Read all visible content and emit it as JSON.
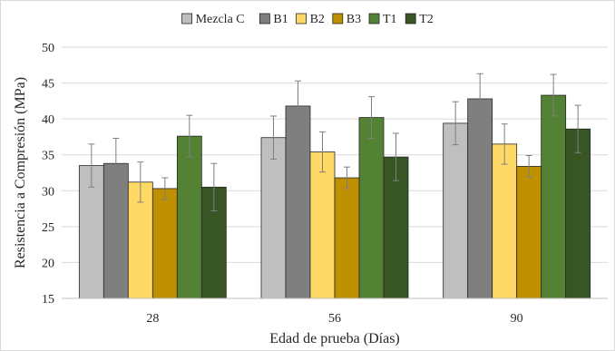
{
  "chart_data": {
    "type": "bar",
    "title": "",
    "xlabel": "Edad de prueba (Días)",
    "ylabel": "Resistencia a Compresión (MPa)",
    "ylim": [
      15,
      50
    ],
    "yticks": [
      15,
      20,
      25,
      30,
      35,
      40,
      45,
      50
    ],
    "grid": true,
    "legend_position": "top",
    "error_bars": true,
    "categories": [
      "28",
      "56",
      "90"
    ],
    "series": [
      {
        "name": "Mezcla C",
        "color": "#bfbfbf",
        "values": [
          33.5,
          37.4,
          39.4
        ],
        "errors": [
          3.0,
          3.0,
          3.0
        ]
      },
      {
        "name": "B1",
        "color": "#7f7f7f",
        "values": [
          33.8,
          41.8,
          42.8
        ],
        "errors": [
          3.5,
          3.5,
          3.5
        ]
      },
      {
        "name": "B2",
        "color": "#ffd966",
        "values": [
          31.2,
          35.4,
          36.5
        ],
        "errors": [
          2.8,
          2.8,
          2.8
        ]
      },
      {
        "name": "B3",
        "color": "#bf9000",
        "values": [
          30.3,
          31.8,
          33.4
        ],
        "errors": [
          1.5,
          1.5,
          1.5
        ]
      },
      {
        "name": "T1",
        "color": "#548235",
        "values": [
          37.6,
          40.2,
          43.3
        ],
        "errors": [
          2.9,
          2.9,
          2.9
        ]
      },
      {
        "name": "T2",
        "color": "#375623",
        "values": [
          30.5,
          34.7,
          38.6
        ],
        "errors": [
          3.3,
          3.3,
          3.3
        ]
      }
    ]
  }
}
